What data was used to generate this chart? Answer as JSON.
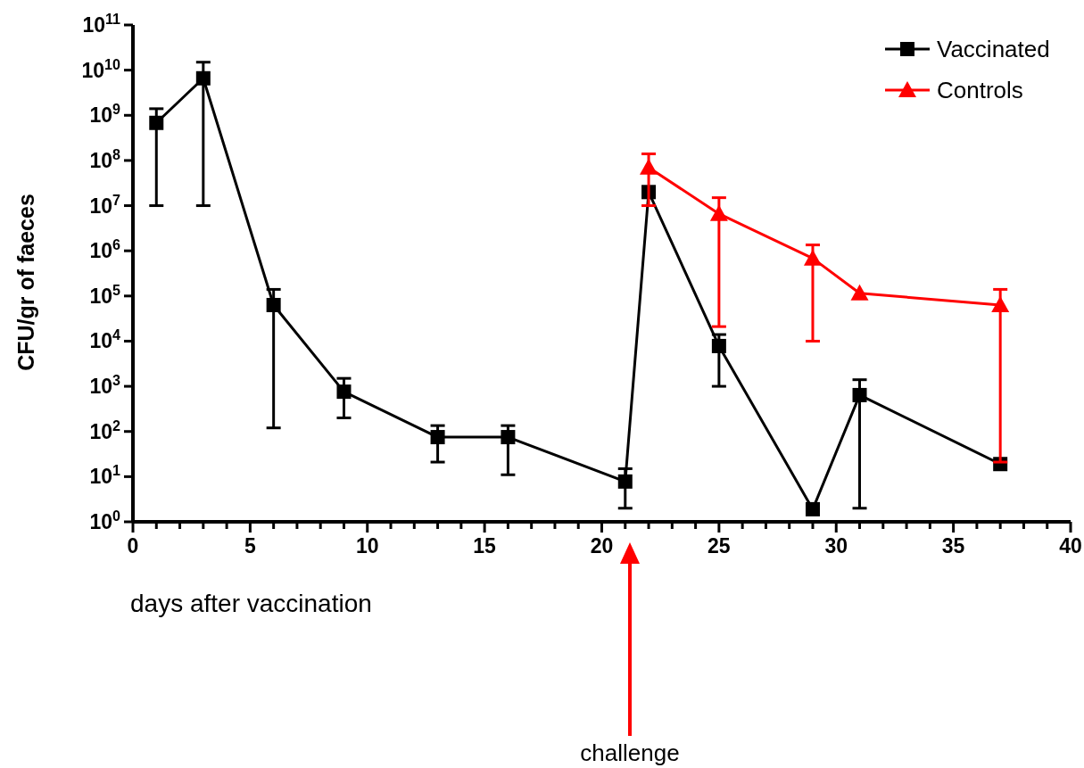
{
  "chart_data": {
    "type": "line",
    "xlabel": "days after vaccination",
    "ylabel": "CFU/gr of faeces",
    "log": "y",
    "xlim": [
      0,
      40
    ],
    "ylim": [
      1,
      100000000000
    ],
    "xticks": [
      0,
      {
        "value": 1,
        "label": null
      },
      {
        "value": 2,
        "label": null
      },
      {
        "value": 3,
        "label": null
      },
      {
        "value": 4,
        "label": null
      },
      5,
      {
        "value": 6,
        "label": null
      },
      {
        "value": 7,
        "label": null
      },
      {
        "value": 8,
        "label": null
      },
      {
        "value": 9,
        "label": null
      },
      10,
      {
        "value": 11,
        "label": null
      },
      {
        "value": 12,
        "label": null
      },
      {
        "value": 13,
        "label": null
      },
      {
        "value": 14,
        "label": null
      },
      15,
      {
        "value": 16,
        "label": null
      },
      {
        "value": 17,
        "label": null
      },
      {
        "value": 18,
        "label": null
      },
      {
        "value": 19,
        "label": null
      },
      20,
      {
        "value": 21,
        "label": null
      },
      {
        "value": 22,
        "label": null
      },
      {
        "value": 23,
        "label": null
      },
      {
        "value": 24,
        "label": null
      },
      25,
      {
        "value": 26,
        "label": null
      },
      {
        "value": 27,
        "label": null
      },
      {
        "value": 28,
        "label": null
      },
      {
        "value": 29,
        "label": null
      },
      30,
      {
        "value": 31,
        "label": null
      },
      {
        "value": 32,
        "label": null
      },
      {
        "value": 33,
        "label": null
      },
      {
        "value": 34,
        "label": null
      },
      35,
      {
        "value": 36,
        "label": null
      },
      {
        "value": 37,
        "label": null
      },
      {
        "value": 38,
        "label": null
      },
      {
        "value": 39,
        "label": null
      },
      40
    ],
    "yticks": [
      {
        "value": 1,
        "label": "10$^{0}$"
      },
      {
        "value": 10,
        "label": "10$^{1}$"
      },
      {
        "value": 100,
        "label": "10$^{2}$"
      },
      {
        "value": 1000,
        "label": "10$^{3}$"
      },
      {
        "value": 10000,
        "label": "10$^{4}$"
      },
      {
        "value": 100000,
        "label": "10$^{5}$"
      },
      {
        "value": 1000000,
        "label": "10$^{6}$"
      },
      {
        "value": 10000000,
        "label": "10$^{7}$"
      },
      {
        "value": 100000000,
        "label": "10$^{8}$"
      },
      {
        "value": 1000000000,
        "label": "10$^{9}$"
      },
      {
        "value": 10000000000,
        "label": "10$^{10}$"
      },
      {
        "value": 100000000000,
        "label": "10$^{11}$"
      }
    ],
    "grid": false,
    "legend": "top right",
    "line_style": "solid",
    "series": [
      {
        "name": "Vaccinated",
        "color": "#000000",
        "marker": "square",
        "x": [
          1,
          3,
          6,
          9,
          13,
          16,
          21,
          22,
          25,
          29,
          31,
          37
        ],
        "values": [
          680000000,
          6600000000,
          63000,
          760,
          75,
          75,
          7.8,
          20000000,
          7800,
          1.9,
          640,
          19
        ],
        "errors": [
          [
            10000000,
            1400000000
          ],
          [
            10000000,
            15000000000
          ],
          [
            120,
            140000
          ],
          [
            200,
            1500
          ],
          [
            21,
            135
          ],
          [
            11,
            135
          ],
          [
            2,
            15
          ],
          null,
          [
            1000,
            14000
          ],
          null,
          [
            2,
            1400
          ],
          null
        ]
      },
      {
        "name": "Controls",
        "color": "#ff0000",
        "marker": "triangle",
        "x": [
          22,
          25,
          29,
          31,
          37
        ],
        "values": [
          70000000,
          6600000,
          680000,
          115000,
          63000
        ],
        "errors": [
          [
            10000000,
            140000000
          ],
          [
            21000,
            15000000
          ],
          [
            10000,
            1350000
          ],
          null,
          [
            21,
            140000
          ]
        ]
      }
    ],
    "annotations": [
      "challenge"
    ]
  }
}
